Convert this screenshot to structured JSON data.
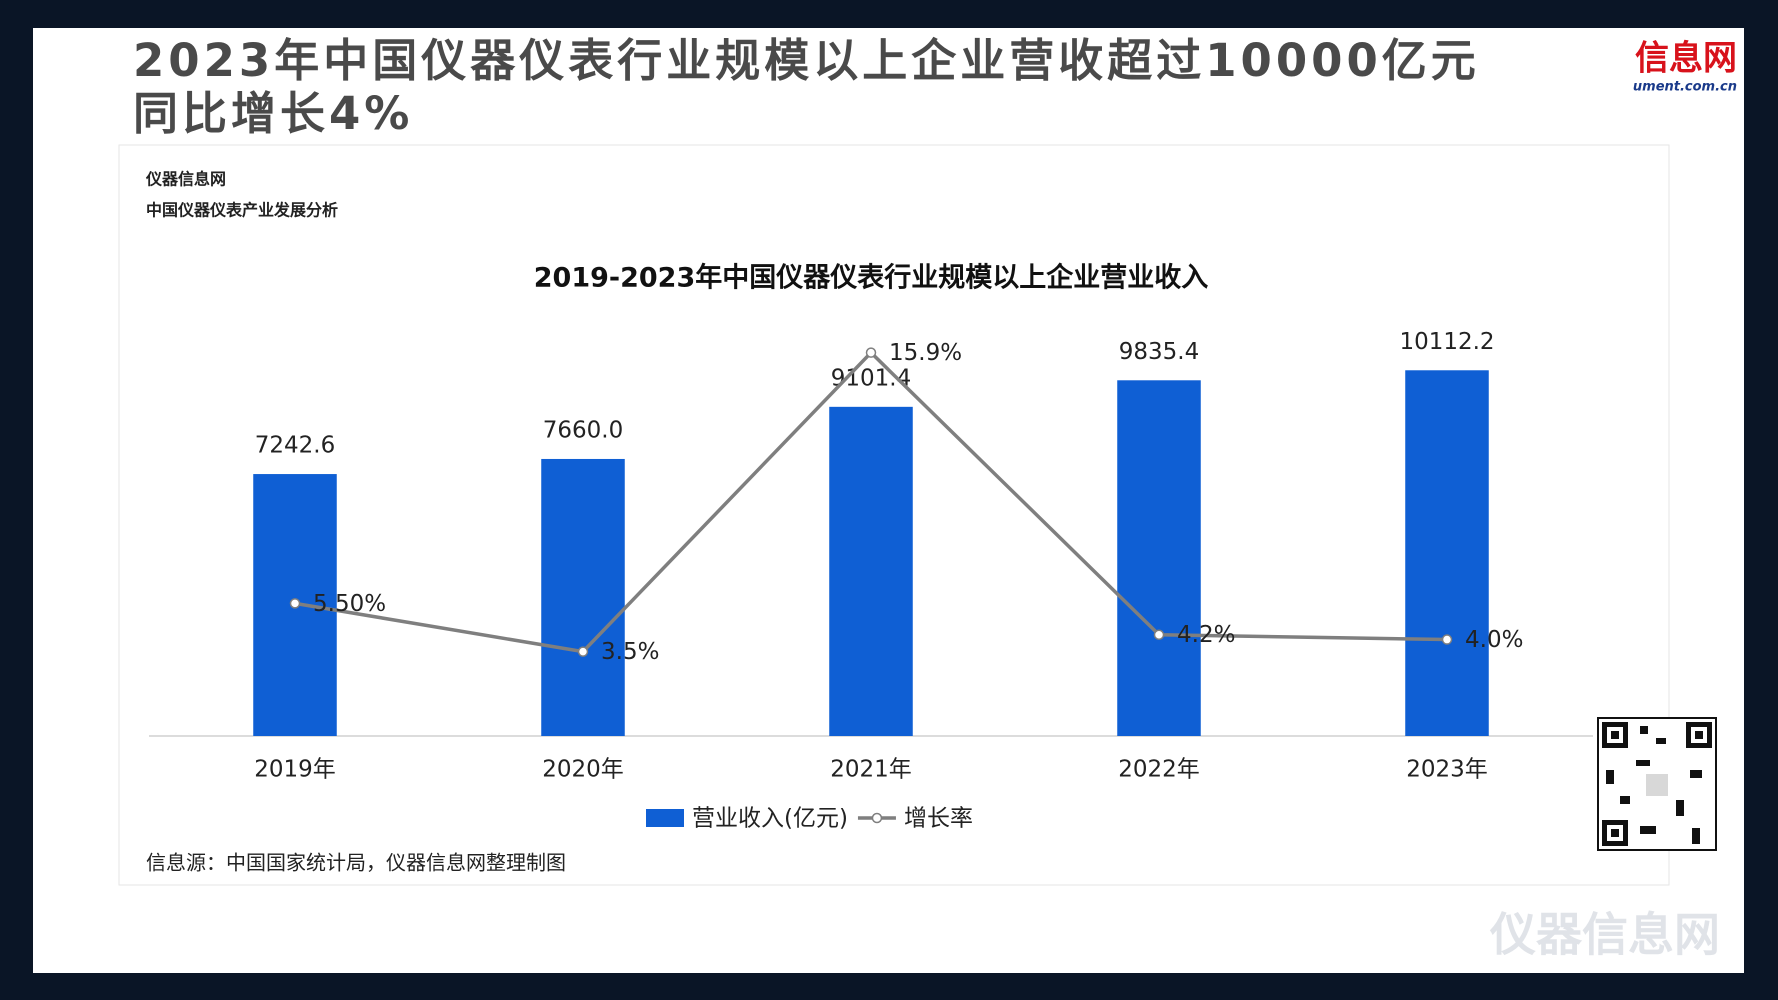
{
  "header": {
    "title_line1": "2023年中国仪器仪表行业规模以上企业营收超过10000亿元",
    "title_line2": "同比增长4%",
    "logo": "信息网",
    "logo_url": "ument.com.cn"
  },
  "panel": {
    "source_name": "仪器信息网",
    "subtitle": "中国仪器仪表产业发展分析",
    "note": "信息源：中国国家统计局，仪器信息网整理制图"
  },
  "watermark": "仪器信息网",
  "chart_data": {
    "type": "bar",
    "title": "2019-2023年中国仪器仪表行业规模以上企业营业收入",
    "categories": [
      "2019年",
      "2020年",
      "2021年",
      "2022年",
      "2023年"
    ],
    "series": [
      {
        "name": "营业收入(亿元)",
        "type": "bar",
        "color": "#0f5fd4",
        "values": [
          7242.6,
          7660.0,
          9101.4,
          9835.4,
          10112.2
        ],
        "value_labels": [
          "7242.6",
          "7660.0",
          "9101.4",
          "9835.4",
          "10112.2"
        ]
      },
      {
        "name": "增长率",
        "type": "line",
        "axis": "y2",
        "color": "#7f7f7f",
        "values": [
          5.5,
          3.5,
          15.9,
          4.2,
          4.0
        ],
        "value_labels": [
          "5.50%",
          "3.5%",
          "15.9%",
          "4.2%",
          "4.0%"
        ]
      }
    ],
    "ylim": [
      0,
      12000
    ],
    "y2lim": [
      0,
      18
    ],
    "legend": "bottom"
  }
}
